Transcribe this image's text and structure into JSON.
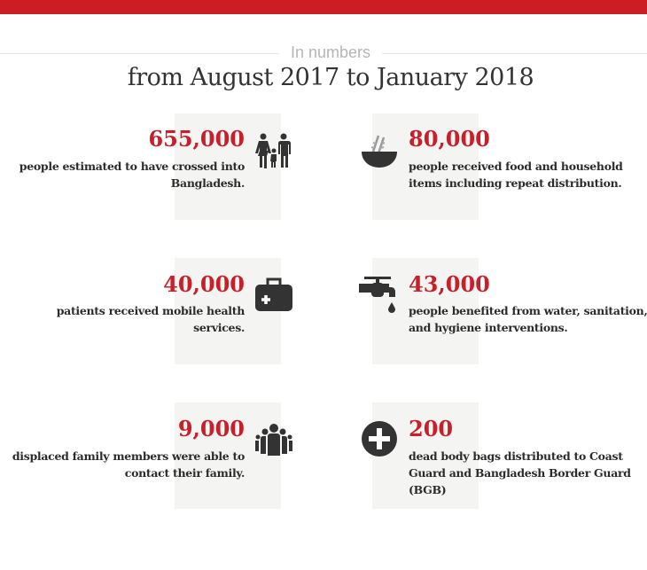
{
  "header": {
    "kicker": "In numbers",
    "title": "from August 2017 to January 2018"
  },
  "accent_color": "#cc1c24",
  "stats": [
    {
      "value": "655,000",
      "description": "people estimated to have crossed into Bangladesh.",
      "icon": "family-icon"
    },
    {
      "value": "80,000",
      "description": "people received food and household items including repeat distribution.",
      "icon": "rice-bowl-icon"
    },
    {
      "value": "40,000",
      "description": "patients received mobile health services.",
      "icon": "medical-kit-icon"
    },
    {
      "value": "43,000",
      "description": "people benefited from water, sanitation, and hygiene interventions.",
      "icon": "water-tap-icon"
    },
    {
      "value": "9,000",
      "description": "displaced family members were able to contact their family.",
      "icon": "group-icon"
    },
    {
      "value": "200",
      "description": "dead body bags distributed to Coast Guard and Bangladesh Border Guard (BGB)",
      "icon": "plus-circle-icon"
    }
  ]
}
